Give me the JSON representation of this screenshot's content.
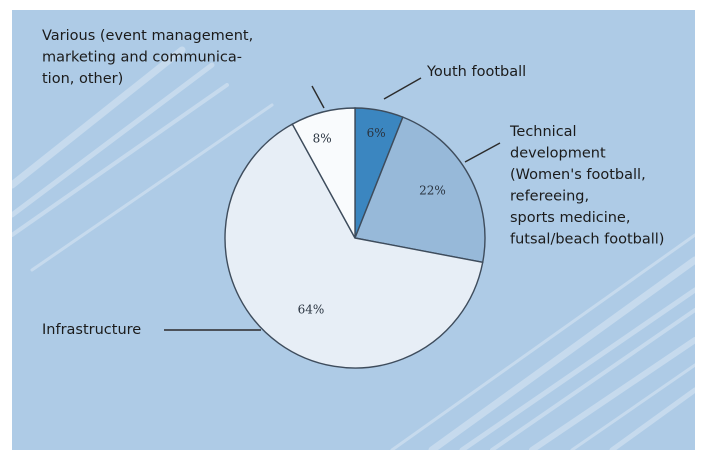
{
  "chart_data": {
    "type": "pie",
    "title": "",
    "slices": [
      {
        "label_lines": [
          "Youth football"
        ],
        "value": 6,
        "value_label": "6%",
        "color": "#3b86c0"
      },
      {
        "label_lines": [
          "Technical",
          "development",
          "(Women's football,",
          "refereeing,",
          "sports medicine,",
          "futsal/beach football)"
        ],
        "value": 22,
        "value_label": "22%",
        "color": "#97b9d9"
      },
      {
        "label_lines": [
          "Infrastructure"
        ],
        "value": 64,
        "value_label": "64%",
        "color": "#e7eef6"
      },
      {
        "label_lines": [
          "Various (event management,",
          "marketing and communica-",
          "tion, other)"
        ],
        "value": 8,
        "value_label": "8%",
        "color": "#f9fbfd"
      }
    ],
    "start_angle_degrees": 0,
    "direction": "clockwise",
    "legend": "none",
    "label_style": "external labels with leader lines"
  },
  "colors": {
    "background": "#aecbe6",
    "stripe": "#cfe0f0",
    "outline": "#3e4c5c"
  }
}
